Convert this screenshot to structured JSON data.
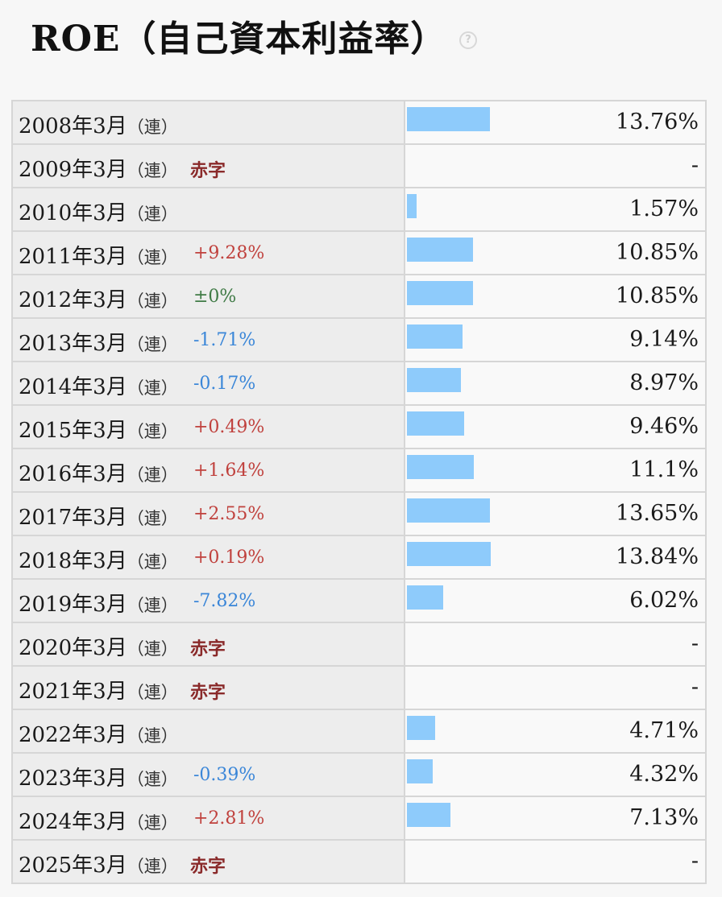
{
  "header": {
    "title": "ROE（自己資本利益率）",
    "help_icon": "?"
  },
  "chart_data": {
    "type": "bar",
    "ylabel": "ROE",
    "unit": "%",
    "categories": [
      "2008年3月",
      "2009年3月",
      "2010年3月",
      "2011年3月",
      "2012年3月",
      "2013年3月",
      "2014年3月",
      "2015年3月",
      "2016年3月",
      "2017年3月",
      "2018年3月",
      "2019年3月",
      "2020年3月",
      "2021年3月",
      "2022年3月",
      "2023年3月",
      "2024年3月",
      "2025年3月"
    ],
    "values": [
      13.76,
      null,
      1.57,
      10.85,
      10.85,
      9.14,
      8.97,
      9.46,
      11.1,
      13.65,
      13.84,
      6.02,
      null,
      null,
      4.71,
      4.32,
      7.13,
      null
    ],
    "rows": [
      {
        "period": "2008年3月",
        "cons": "（連）",
        "change": "",
        "change_type": "none",
        "value": 13.76,
        "display": "13.76%"
      },
      {
        "period": "2009年3月",
        "cons": "（連）",
        "change": "赤字",
        "change_type": "deficit",
        "value": null,
        "display": "-"
      },
      {
        "period": "2010年3月",
        "cons": "（連）",
        "change": "",
        "change_type": "none",
        "value": 1.57,
        "display": "1.57%"
      },
      {
        "period": "2011年3月",
        "cons": "（連）",
        "change": "+9.28%",
        "change_type": "up",
        "value": 10.85,
        "display": "10.85%"
      },
      {
        "period": "2012年3月",
        "cons": "（連）",
        "change": "±0%",
        "change_type": "flat",
        "value": 10.85,
        "display": "10.85%"
      },
      {
        "period": "2013年3月",
        "cons": "（連）",
        "change": "-1.71%",
        "change_type": "down",
        "value": 9.14,
        "display": "9.14%"
      },
      {
        "period": "2014年3月",
        "cons": "（連）",
        "change": "-0.17%",
        "change_type": "down",
        "value": 8.97,
        "display": "8.97%"
      },
      {
        "period": "2015年3月",
        "cons": "（連）",
        "change": "+0.49%",
        "change_type": "up",
        "value": 9.46,
        "display": "9.46%"
      },
      {
        "period": "2016年3月",
        "cons": "（連）",
        "change": "+1.64%",
        "change_type": "up",
        "value": 11.1,
        "display": "11.1%"
      },
      {
        "period": "2017年3月",
        "cons": "（連）",
        "change": "+2.55%",
        "change_type": "up",
        "value": 13.65,
        "display": "13.65%"
      },
      {
        "period": "2018年3月",
        "cons": "（連）",
        "change": "+0.19%",
        "change_type": "up",
        "value": 13.84,
        "display": "13.84%"
      },
      {
        "period": "2019年3月",
        "cons": "（連）",
        "change": "-7.82%",
        "change_type": "down",
        "value": 6.02,
        "display": "6.02%"
      },
      {
        "period": "2020年3月",
        "cons": "（連）",
        "change": "赤字",
        "change_type": "deficit",
        "value": null,
        "display": "-"
      },
      {
        "period": "2021年3月",
        "cons": "（連）",
        "change": "赤字",
        "change_type": "deficit",
        "value": null,
        "display": "-"
      },
      {
        "period": "2022年3月",
        "cons": "（連）",
        "change": "",
        "change_type": "none",
        "value": 4.71,
        "display": "4.71%"
      },
      {
        "period": "2023年3月",
        "cons": "（連）",
        "change": "-0.39%",
        "change_type": "down",
        "value": 4.32,
        "display": "4.32%"
      },
      {
        "period": "2024年3月",
        "cons": "（連）",
        "change": "+2.81%",
        "change_type": "up",
        "value": 7.13,
        "display": "7.13%"
      },
      {
        "period": "2025年3月",
        "cons": "（連）",
        "change": "赤字",
        "change_type": "deficit",
        "value": null,
        "display": "-"
      }
    ]
  },
  "colors": {
    "bar": "#8ecbfb",
    "up": "#c0413d",
    "down": "#3a86d8",
    "flat": "#3f7a45",
    "deficit": "#8a2a2a"
  }
}
